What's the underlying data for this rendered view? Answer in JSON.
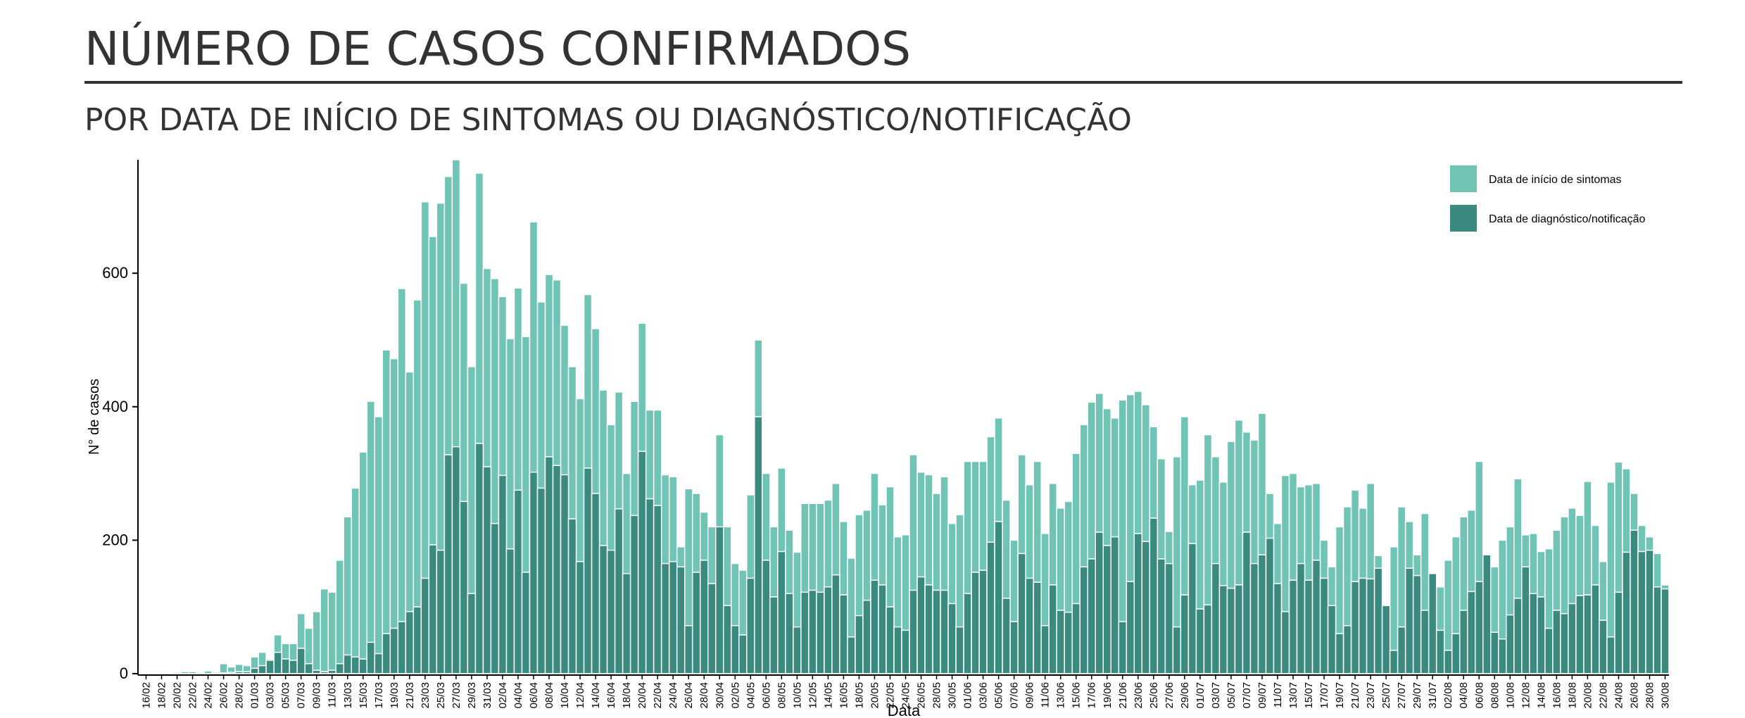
{
  "chart_data": {
    "type": "bar",
    "title": "NÚMERO DE CASOS CONFIRMADOS",
    "subtitle": "POR DATA DE INÍCIO DE SINTOMAS OU DIAGNÓSTICO/NOTIFICAÇÃO",
    "xlabel": "Data",
    "ylabel": "N° de casos",
    "legend": "top-right",
    "categories": [
      "16/02",
      null,
      "18/02",
      null,
      "20/02",
      null,
      "22/02",
      null,
      "24/02",
      null,
      "26/02",
      null,
      "28/02",
      null,
      "01/03",
      null,
      "03/03",
      null,
      "05/03",
      null,
      "07/03",
      null,
      "09/03",
      null,
      "11/03",
      null,
      "13/03",
      null,
      "15/03",
      null,
      "17/03",
      null,
      "19/03",
      null,
      "21/03",
      null,
      "23/03",
      null,
      "25/03",
      null,
      "27/03",
      null,
      "29/03",
      null,
      "31/03",
      null,
      "02/04",
      null,
      "04/04",
      null,
      "06/04",
      null,
      "08/04",
      null,
      "10/04",
      null,
      "12/04",
      null,
      "14/04",
      null,
      "16/04",
      null,
      "18/04",
      null,
      "20/04",
      null,
      "22/04",
      null,
      "24/04",
      null,
      "26/04",
      null,
      "28/04",
      null,
      "30/04",
      null,
      "02/05",
      null,
      "04/05",
      null,
      "06/05",
      null,
      "08/05",
      null,
      "10/05",
      null,
      "12/05",
      null,
      "14/05",
      null,
      "16/05",
      null,
      "18/05",
      null,
      "20/05",
      null,
      "22/05",
      null,
      "24/05",
      null,
      "26/05",
      null,
      "28/05",
      null,
      "30/05",
      null,
      "01/06",
      null,
      "03/06",
      null,
      "05/06",
      null,
      "07/06",
      null,
      "09/06",
      null,
      "11/06",
      null,
      "13/06",
      null,
      "15/06",
      null,
      "17/06",
      null,
      "19/06",
      null,
      "21/06",
      null,
      "23/06",
      null,
      "25/06",
      null,
      "27/06",
      null,
      "29/06",
      null,
      "01/07",
      null,
      "03/07",
      null,
      "05/07",
      null,
      "07/07",
      null,
      "09/07",
      null,
      "11/07",
      null,
      "13/07",
      null,
      "15/07",
      null,
      "17/07",
      null,
      "19/07",
      null,
      "21/07",
      null,
      "23/07",
      null,
      "25/07",
      null,
      "27/07",
      null,
      "29/07",
      null,
      "31/07",
      null,
      "02/08",
      null,
      "04/08",
      null,
      "06/08",
      null,
      "08/08",
      null,
      "10/08",
      null,
      "12/08",
      null,
      "14/08",
      null,
      "16/08",
      null,
      "18/08",
      null,
      "20/08",
      null,
      "22/08",
      null,
      "24/08",
      null,
      "26/08",
      null,
      "28/08",
      null,
      "30/08"
    ],
    "series": [
      {
        "name": "Data de início de sintomas",
        "color": "#6fc4b6",
        "values": [
          0,
          0,
          1,
          1,
          2,
          3,
          3,
          2,
          4,
          3,
          15,
          10,
          14,
          12,
          25,
          32,
          22,
          58,
          45,
          45,
          90,
          68,
          93,
          127,
          122,
          170,
          235,
          278,
          332,
          408,
          385,
          485,
          472,
          577,
          452,
          560,
          707,
          655,
          705,
          745,
          770,
          585,
          460,
          750,
          607,
          592,
          565,
          502,
          578,
          505,
          677,
          557,
          598,
          590,
          522,
          460,
          412,
          568,
          517,
          425,
          373,
          422,
          300,
          408,
          525,
          395,
          395,
          298,
          295,
          190,
          277,
          270,
          242,
          220,
          358,
          220,
          165,
          155,
          268,
          500,
          300,
          220,
          308,
          215,
          182,
          255,
          255,
          255,
          260,
          285,
          228,
          173,
          238,
          245,
          300,
          253,
          280,
          205,
          208,
          328,
          302,
          298,
          270,
          295,
          225,
          238,
          318,
          318,
          318,
          355,
          383,
          260,
          200,
          328,
          283,
          318,
          210,
          285,
          248,
          258,
          330,
          373,
          407,
          420,
          397,
          383,
          410,
          418,
          423,
          403,
          370,
          322,
          213,
          325,
          385,
          283,
          290,
          358,
          325,
          287,
          348,
          380,
          362,
          350,
          390,
          270,
          225,
          297,
          300,
          280,
          283,
          285,
          200,
          160,
          220,
          250,
          275,
          248,
          285,
          177,
          103,
          190,
          250,
          228,
          178,
          240,
          125,
          130,
          170,
          205,
          235,
          245,
          318,
          172,
          160,
          200,
          220,
          292,
          208,
          210,
          183,
          187,
          215,
          235,
          248,
          237,
          288,
          222,
          168,
          287,
          317,
          307,
          270,
          222,
          205,
          180,
          133
        ]
      },
      {
        "name": "Data de diagnóstico/notificação",
        "color": "#3a8a80",
        "values": [
          0,
          0,
          0,
          0,
          0,
          0,
          0,
          0,
          0,
          1,
          1,
          2,
          3,
          3,
          8,
          12,
          20,
          32,
          22,
          20,
          38,
          15,
          5,
          3,
          5,
          15,
          28,
          25,
          22,
          47,
          30,
          60,
          68,
          78,
          93,
          100,
          143,
          193,
          185,
          328,
          340,
          258,
          120,
          345,
          310,
          225,
          297,
          187,
          275,
          152,
          302,
          278,
          325,
          312,
          298,
          232,
          168,
          308,
          270,
          192,
          185,
          247,
          150,
          237,
          333,
          262,
          252,
          165,
          168,
          160,
          72,
          152,
          170,
          135,
          220,
          102,
          72,
          58,
          143,
          385,
          170,
          115,
          183,
          120,
          70,
          122,
          125,
          122,
          130,
          148,
          118,
          55,
          87,
          110,
          140,
          133,
          100,
          70,
          65,
          125,
          145,
          133,
          125,
          125,
          105,
          70,
          120,
          152,
          155,
          197,
          228,
          113,
          78,
          180,
          143,
          137,
          72,
          133,
          95,
          92,
          105,
          160,
          172,
          212,
          192,
          205,
          78,
          138,
          210,
          198,
          233,
          172,
          165,
          70,
          118,
          195,
          97,
          103,
          165,
          132,
          128,
          133,
          212,
          165,
          178,
          203,
          135,
          93,
          140,
          165,
          140,
          170,
          143,
          102,
          60,
          72,
          138,
          143,
          142,
          158,
          102,
          35,
          70,
          158,
          147,
          95,
          150,
          65,
          35,
          60,
          95,
          123,
          138,
          178,
          62,
          52,
          88,
          113,
          160,
          120,
          115,
          68,
          95,
          90,
          105,
          117,
          118,
          133,
          80,
          55,
          122,
          182,
          215,
          183,
          185,
          130,
          127
        ]
      }
    ],
    "ylim": [
      0,
      770
    ],
    "yticks": [
      0,
      200,
      400,
      600
    ]
  }
}
